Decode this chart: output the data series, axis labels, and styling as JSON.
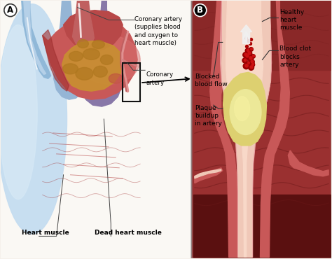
{
  "bg_color": "#f5f0eb",
  "labels": {
    "coronary_artery": "Coronary artery\n(supplies blood\nand oxygen to\nheart muscle)",
    "coronary_artery2": "Coronary\nartery",
    "heart_muscle": "Heart muscle",
    "dead_heart_muscle": "Dead heart muscle",
    "healthy_heart_muscle": "Healthy\nheart\nmuscle",
    "blood_clot": "Blood clot\nblocks\nartery",
    "blocked_flow": "Blocked\nblood flow",
    "plaque": "Plaque\nbuildup\nin artery"
  },
  "colors": {
    "heart_red": "#c85050",
    "heart_mid": "#b84040",
    "heart_dark": "#8B2020",
    "heart_light_pink": "#e09080",
    "heart_pale": "#d88070",
    "dead_tissue_orange": "#c8902a",
    "dead_tissue_dark": "#a07020",
    "dead_texture": "#b87828",
    "aorta_blue": "#90b8d8",
    "aorta_blue2": "#b0cce0",
    "lung_blue": "#c0d8ec",
    "lung_blue2": "#d0e4f0",
    "bg_white": "#fafaf8",
    "plaque_yellow": "#e8d878",
    "plaque_light": "#f0e8a0",
    "blood_clot_dark": "#880000",
    "blood_clot_mid": "#bb1111",
    "artery_wall": "#c85858",
    "artery_lumen": "#f0c0b0",
    "artery_lumen_light": "#fad0c0",
    "muscle_dark": "#6a1a1a",
    "muscle_mid": "#8a2828",
    "muscle_light": "#a03030",
    "panel_b_bg": "#9a3838",
    "purple_vessel": "#7060a0",
    "white": "#ffffff",
    "arrow_white": "#f0f0ee",
    "text_black": "#111111",
    "outline_dark": "#222222",
    "line_gray": "#444444"
  },
  "figsize": [
    4.74,
    3.7
  ],
  "dpi": 100
}
